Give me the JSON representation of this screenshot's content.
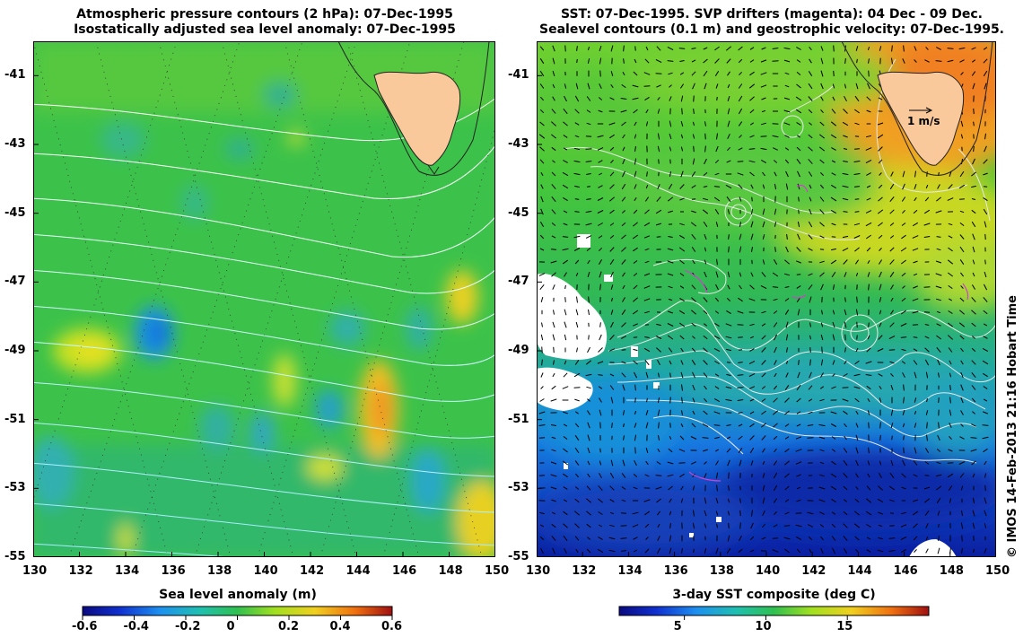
{
  "left_panel": {
    "title_line1": "Atmospheric pressure contours (2 hPa): 07-Dec-1995",
    "title_line2": "Isostatically adjusted sea level anomaly: 07-Dec-1995",
    "colorbar_title": "Sea level anomaly (m)",
    "colorbar_ticks": [
      "-0.6",
      "-0.4",
      "-0.2",
      "0",
      "0.2",
      "0.4",
      "0.6"
    ]
  },
  "right_panel": {
    "title_line1": "SST: 07-Dec-1995. SVP drifters (magenta): 04 Dec - 09 Dec.",
    "title_line2": "Sealevel contours (0.1 m) and geostrophic velocity: 07-Dec-1995.",
    "colorbar_title": "3-day SST composite (deg C)",
    "colorbar_ticks": [
      "5",
      "10",
      "15"
    ],
    "velocity_scale_label": "1 m/s"
  },
  "axes": {
    "lon_ticks": [
      "130",
      "132",
      "134",
      "136",
      "138",
      "140",
      "142",
      "144",
      "146",
      "148",
      "150"
    ],
    "lat_ticks": [
      "-41",
      "-43",
      "-45",
      "-47",
      "-49",
      "-51",
      "-53",
      "-55"
    ],
    "lon_range": [
      130,
      150
    ],
    "lat_range": [
      -55,
      -40
    ]
  },
  "copyright": "© IMOS 14-Feb-2013 21:16 Hobart Time",
  "colors": {
    "land": "#f9c89b",
    "pressure_contour": "#ffffff",
    "drifter": "#d040d0"
  }
}
